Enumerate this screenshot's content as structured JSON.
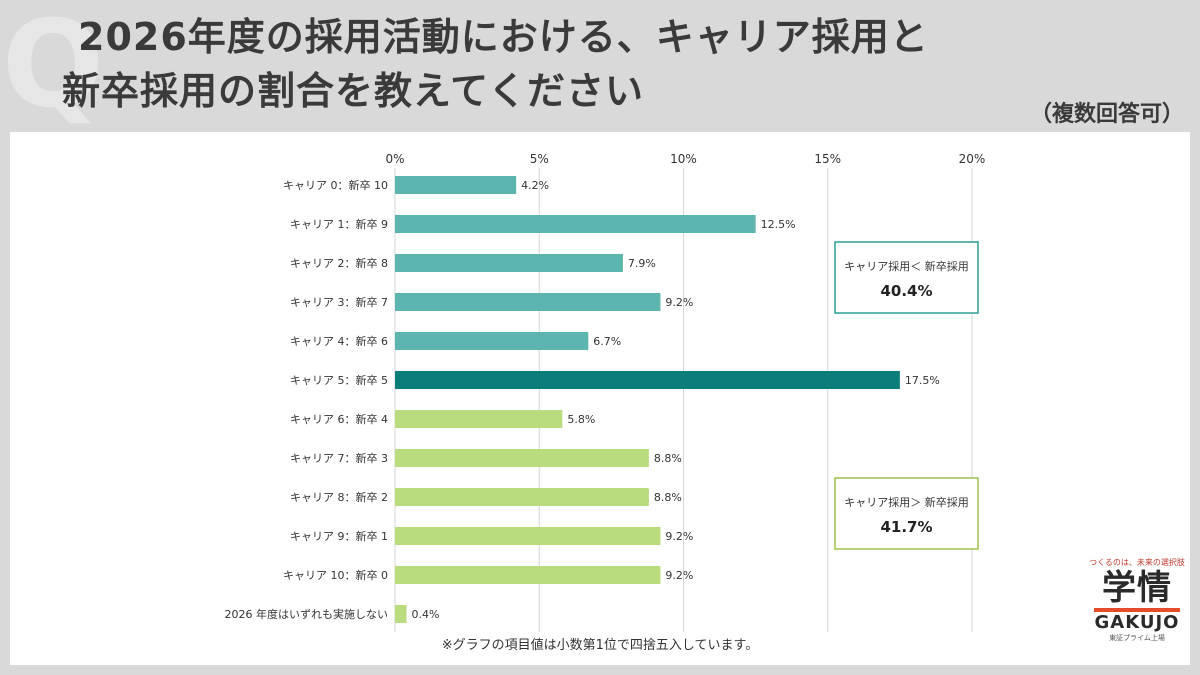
{
  "header": {
    "q_mark": "Q",
    "title_line1": "2026年度の採用活動における、キャリア採用と",
    "title_line2": "新卒採用の割合を教えてください",
    "multi_note": "（複数回答可）"
  },
  "chart_data": {
    "type": "bar",
    "orientation": "horizontal",
    "x_ticks": [
      "0%",
      "5%",
      "10%",
      "15%",
      "20%"
    ],
    "xlim": [
      0,
      20
    ],
    "grid": true,
    "categories": [
      "キャリア 0：新卒 10",
      "キャリア 1：新卒 9",
      "キャリア 2：新卒 8",
      "キャリア 3：新卒 7",
      "キャリア 4：新卒 6",
      "キャリア 5：新卒 5",
      "キャリア 6：新卒 4",
      "キャリア 7：新卒 3",
      "キャリア 8：新卒 2",
      "キャリア 9：新卒 1",
      "キャリア 10：新卒 0",
      "2026 年度はいずれも実施しない"
    ],
    "values": [
      4.2,
      12.5,
      7.9,
      9.2,
      6.7,
      17.5,
      5.8,
      8.8,
      8.8,
      9.2,
      9.2,
      0.4
    ],
    "value_labels": [
      "4.2%",
      "12.5%",
      "7.9%",
      "9.2%",
      "6.7%",
      "17.5%",
      "5.8%",
      "8.8%",
      "8.8%",
      "9.2%",
      "9.2%",
      "0.4%"
    ],
    "bar_colors": [
      "#5cb5ae",
      "#5cb5ae",
      "#5cb5ae",
      "#5cb5ae",
      "#5cb5ae",
      "#0a7d78",
      "#b9dc7e",
      "#b9dc7e",
      "#b9dc7e",
      "#b9dc7e",
      "#b9dc7e",
      "#b9dc7e"
    ],
    "annotations": [
      {
        "label": "キャリア採用＜ 新卒採用",
        "value": "40.4%",
        "color": "#2a9d95"
      },
      {
        "label": "キャリア採用＞ 新卒採用",
        "value": "41.7%",
        "color": "#9dc24e"
      }
    ]
  },
  "footnote": "※グラフの項目値は小数第1位で四捨五入しています。",
  "logo": {
    "tagline": "つくるのは、未来の選択肢",
    "kanji": "学情",
    "name": "GAKUJO",
    "sub": "東証プライム上場"
  }
}
